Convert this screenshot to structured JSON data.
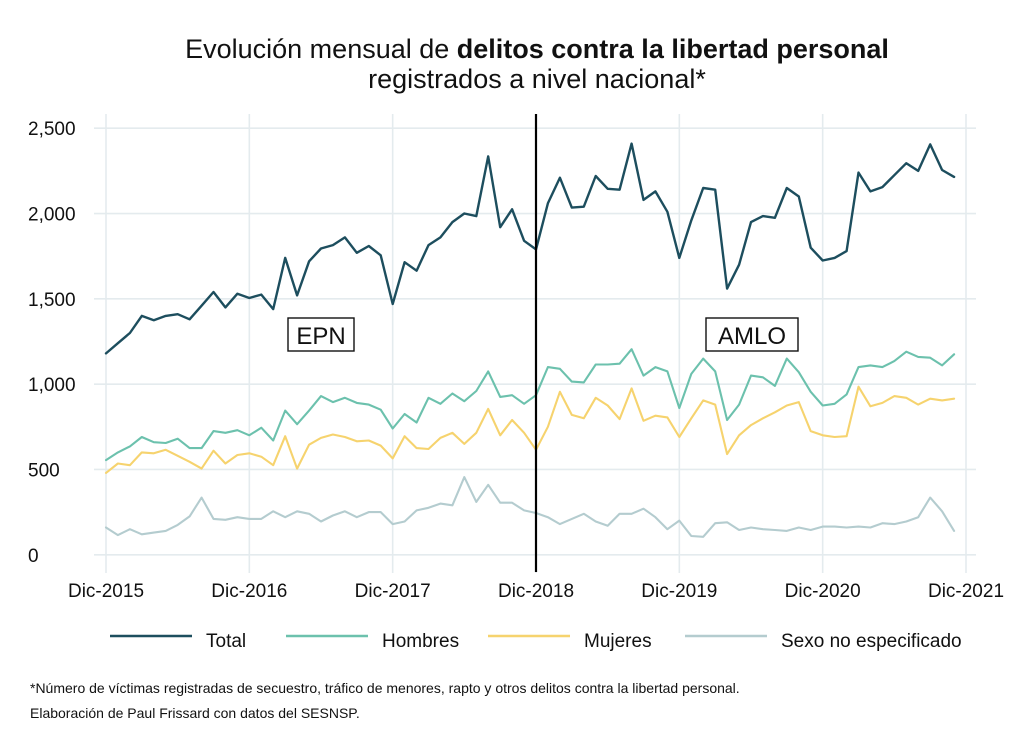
{
  "title": {
    "line1_prefix": "Evolución mensual de ",
    "line1_bold": "delitos contra la libertad personal",
    "line2": "registrados a nivel nacional*"
  },
  "annotations": {
    "left_period": "EPN",
    "right_period": "AMLO"
  },
  "footnotes": {
    "note1": "*Número de víctimas registradas de secuestro, tráfico de menores, rapto y otros delitos contra la libertad personal.",
    "note2": "Elaboración de Paul Frissard con datos del SESNSP."
  },
  "chart_data": {
    "type": "line",
    "x_tick_labels": [
      "Dic-2015",
      "Dic-2016",
      "Dic-2017",
      "Dic-2018",
      "Dic-2019",
      "Dic-2020",
      "Dic-2021"
    ],
    "x_tick_months": [
      0,
      12,
      24,
      36,
      48,
      60,
      72
    ],
    "y_ticks": [
      0,
      500,
      1000,
      1500,
      2000,
      2500
    ],
    "y_tick_labels": [
      "0",
      "500",
      "1,000",
      "1,500",
      "2,000",
      "2,500"
    ],
    "ylim": [
      -60,
      2560
    ],
    "xlim": [
      0,
      72
    ],
    "vertical_line_at_month": 36,
    "grid": true,
    "legend_position": "bottom",
    "series": [
      {
        "name": "Total",
        "color": "#1d4e5e",
        "values": [
          1180,
          1240,
          1300,
          1400,
          1375,
          1400,
          1410,
          1380,
          1460,
          1540,
          1450,
          1530,
          1505,
          1525,
          1440,
          1740,
          1520,
          1720,
          1795,
          1815,
          1860,
          1770,
          1810,
          1755,
          1470,
          1715,
          1665,
          1815,
          1860,
          1950,
          2000,
          1985,
          2335,
          1920,
          2025,
          1840,
          1790,
          2060,
          2210,
          2035,
          2040,
          2220,
          2145,
          2140,
          2410,
          2080,
          2130,
          2010,
          1740,
          1960,
          2150,
          2140,
          1560,
          1700,
          1950,
          1985,
          1975,
          2150,
          2100,
          1800,
          1725,
          1740,
          1780,
          2240,
          2130,
          2155,
          2225,
          2295,
          2250,
          2405,
          2255,
          2215
        ]
      },
      {
        "name": "Hombres",
        "color": "#6cc1ad",
        "values": [
          555,
          600,
          635,
          690,
          660,
          655,
          680,
          625,
          625,
          725,
          715,
          730,
          700,
          745,
          670,
          845,
          765,
          845,
          930,
          895,
          920,
          890,
          880,
          850,
          740,
          825,
          775,
          920,
          885,
          945,
          900,
          960,
          1075,
          925,
          935,
          885,
          935,
          1100,
          1090,
          1015,
          1010,
          1115,
          1115,
          1120,
          1205,
          1050,
          1100,
          1075,
          860,
          1060,
          1150,
          1075,
          790,
          880,
          1050,
          1040,
          990,
          1150,
          1070,
          955,
          875,
          885,
          940,
          1100,
          1110,
          1100,
          1135,
          1190,
          1160,
          1155,
          1110,
          1175
        ]
      },
      {
        "name": "Mujeres",
        "color": "#f6d36e",
        "values": [
          480,
          535,
          525,
          600,
          595,
          615,
          580,
          545,
          505,
          610,
          535,
          585,
          595,
          575,
          525,
          695,
          505,
          645,
          685,
          705,
          690,
          665,
          670,
          640,
          565,
          695,
          625,
          620,
          685,
          715,
          650,
          715,
          855,
          700,
          790,
          715,
          615,
          750,
          955,
          820,
          800,
          920,
          875,
          795,
          975,
          785,
          815,
          805,
          690,
          800,
          905,
          880,
          590,
          700,
          760,
          800,
          835,
          875,
          895,
          725,
          700,
          690,
          695,
          985,
          870,
          890,
          930,
          920,
          880,
          915,
          905,
          915
        ]
      },
      {
        "name": "Sexo no especificado",
        "color": "#b4cccf",
        "values": [
          160,
          115,
          150,
          120,
          130,
          140,
          175,
          225,
          335,
          210,
          205,
          220,
          210,
          210,
          255,
          220,
          255,
          240,
          195,
          230,
          255,
          220,
          250,
          250,
          180,
          195,
          260,
          275,
          300,
          290,
          455,
          310,
          410,
          305,
          305,
          260,
          245,
          220,
          180,
          210,
          240,
          195,
          170,
          240,
          240,
          270,
          220,
          150,
          200,
          110,
          105,
          185,
          190,
          145,
          160,
          150,
          145,
          140,
          160,
          145,
          165,
          165,
          160,
          165,
          160,
          185,
          180,
          195,
          220,
          335,
          255,
          140
        ]
      }
    ]
  }
}
